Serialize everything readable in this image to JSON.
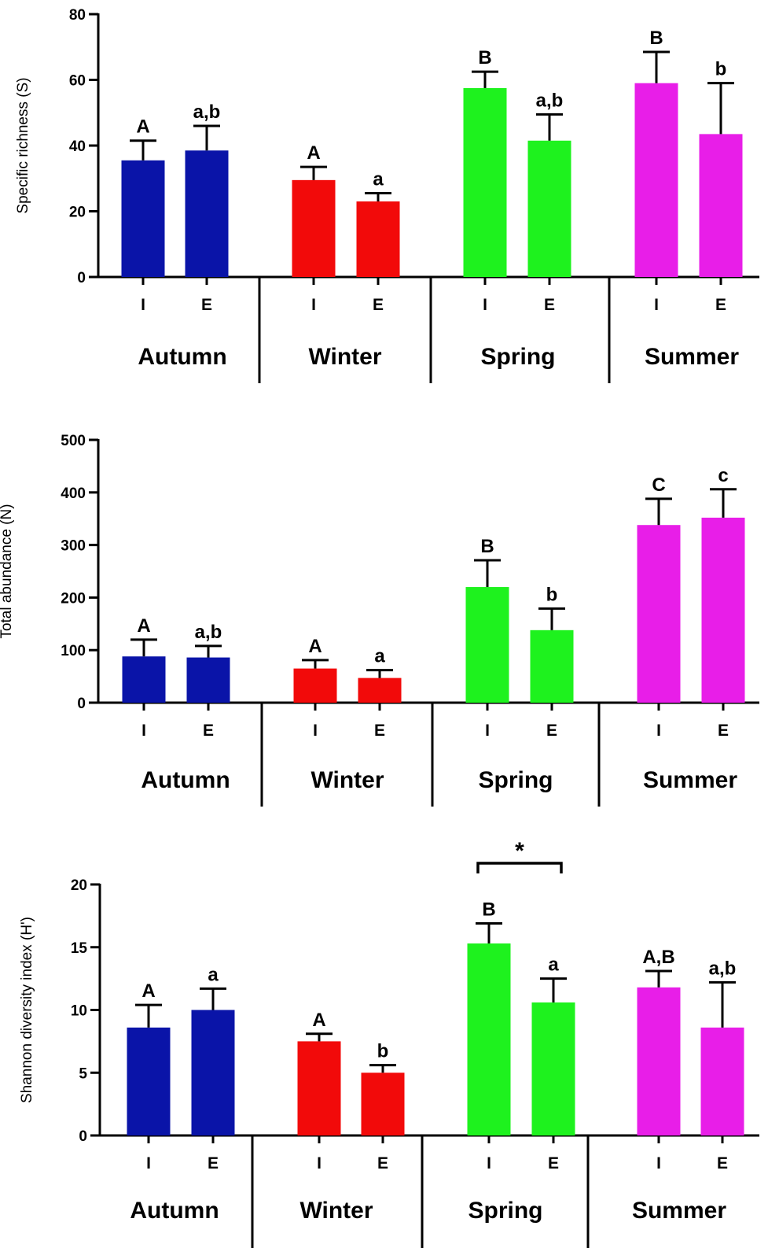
{
  "colors": {
    "Autumn": "#0a14a8",
    "Winter": "#f20a0a",
    "Spring": "#1ef21e",
    "Summer": "#e81ee8"
  },
  "chart_data": [
    {
      "type": "bar",
      "ylabel": "Specific richness (S)",
      "ylim": [
        0,
        80
      ],
      "yticks": [
        "0",
        "20",
        "40",
        "60",
        "80"
      ],
      "seasons": [
        "Autumn",
        "Winter",
        "Spring",
        "Summer"
      ],
      "bar_labels": [
        "I",
        "E",
        "I",
        "E",
        "I",
        "E",
        "I",
        "E"
      ],
      "values": [
        35.5,
        38.5,
        29.5,
        23,
        57.5,
        41.5,
        59,
        43.5
      ],
      "errors": [
        6,
        7.5,
        4,
        2.5,
        5,
        8,
        9.5,
        15.5
      ],
      "sig_labels": [
        "A",
        "a,b",
        "A",
        "a",
        "B",
        "a,b",
        "B",
        "b"
      ],
      "bracket": null
    },
    {
      "type": "bar",
      "ylabel": "Total abundance (N)",
      "ylim": [
        0,
        500
      ],
      "yticks": [
        "0",
        "100",
        "200",
        "300",
        "400",
        "500"
      ],
      "seasons": [
        "Autumn",
        "Winter",
        "Spring",
        "Summer"
      ],
      "bar_labels": [
        "I",
        "E",
        "I",
        "E",
        "I",
        "E",
        "I",
        "E"
      ],
      "values": [
        88,
        86,
        65,
        47,
        220,
        138,
        338,
        352
      ],
      "errors": [
        32,
        22,
        16,
        15,
        51,
        41,
        50,
        54
      ],
      "sig_labels": [
        "A",
        "a,b",
        "A",
        "a",
        "B",
        "b",
        "C",
        "c"
      ],
      "bracket": null
    },
    {
      "type": "bar",
      "ylabel": "Shannon diversity index (H')",
      "ylim": [
        0,
        20
      ],
      "yticks": [
        "0",
        "5",
        "10",
        "15",
        "20"
      ],
      "seasons": [
        "Autumn",
        "Winter",
        "Spring",
        "Summer"
      ],
      "bar_labels": [
        "I",
        "E",
        "I",
        "E",
        "I",
        "E",
        "I",
        "E"
      ],
      "values": [
        8.6,
        10,
        7.5,
        5,
        15.3,
        10.6,
        11.8,
        8.6
      ],
      "errors": [
        1.8,
        1.7,
        0.6,
        0.6,
        1.6,
        1.9,
        1.3,
        3.6
      ],
      "sig_labels": [
        "A",
        "a",
        "A",
        "b",
        "B",
        "a",
        "A,B",
        "a,b"
      ],
      "bracket": {
        "label": "*",
        "bars": [
          4,
          5
        ]
      }
    }
  ]
}
